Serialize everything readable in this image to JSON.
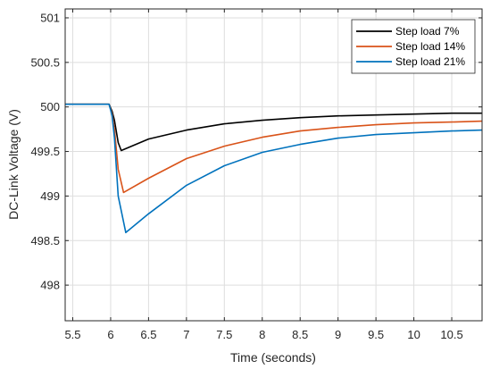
{
  "chart_data": {
    "type": "line",
    "title": "",
    "xlabel": "Time (seconds)",
    "ylabel": "DC-Link Voltage (V)",
    "xlim": [
      5.4,
      10.9
    ],
    "ylim": [
      497.6,
      501.1
    ],
    "x_ticks": [
      "5.5",
      "6",
      "6.5",
      "7",
      "7.5",
      "8",
      "8.5",
      "9",
      "9.5",
      "10",
      "10.5"
    ],
    "x_tick_values": [
      5.5,
      6,
      6.5,
      7,
      7.5,
      8,
      8.5,
      9,
      9.5,
      10,
      10.5
    ],
    "y_ticks": [
      "498",
      "498.5",
      "499",
      "499.5",
      "500",
      "500.5",
      "501"
    ],
    "y_tick_values": [
      498,
      498.5,
      499,
      499.5,
      500,
      500.5,
      501
    ],
    "grid": true,
    "legend_position": "top-right",
    "series": [
      {
        "name": "Step load 7%",
        "color": "#000000",
        "x": [
          5.4,
          5.98,
          6.02,
          6.05,
          6.1,
          6.14,
          6.5,
          7,
          7.5,
          8,
          8.5,
          9,
          9.5,
          10,
          10.5,
          10.9
        ],
        "y": [
          500.03,
          500.03,
          499.95,
          499.85,
          499.6,
          499.51,
          499.64,
          499.74,
          499.81,
          499.85,
          499.88,
          499.9,
          499.91,
          499.92,
          499.93,
          499.93
        ]
      },
      {
        "name": "Step load 14%",
        "color": "#d95319",
        "x": [
          5.4,
          5.98,
          6.02,
          6.05,
          6.1,
          6.17,
          6.5,
          7,
          7.5,
          8,
          8.5,
          9,
          9.5,
          10,
          10.5,
          10.9
        ],
        "y": [
          500.03,
          500.03,
          499.92,
          499.75,
          499.3,
          499.04,
          499.2,
          499.42,
          499.56,
          499.66,
          499.73,
          499.77,
          499.8,
          499.82,
          499.83,
          499.84
        ]
      },
      {
        "name": "Step load 21%",
        "color": "#0072bd",
        "x": [
          5.4,
          5.98,
          6.02,
          6.05,
          6.1,
          6.2,
          6.5,
          7,
          7.5,
          8,
          8.5,
          9,
          9.5,
          10,
          10.5,
          10.9
        ],
        "y": [
          500.03,
          500.03,
          499.9,
          499.65,
          499.0,
          498.59,
          498.8,
          499.12,
          499.34,
          499.49,
          499.58,
          499.65,
          499.69,
          499.71,
          499.73,
          499.74
        ]
      }
    ]
  }
}
